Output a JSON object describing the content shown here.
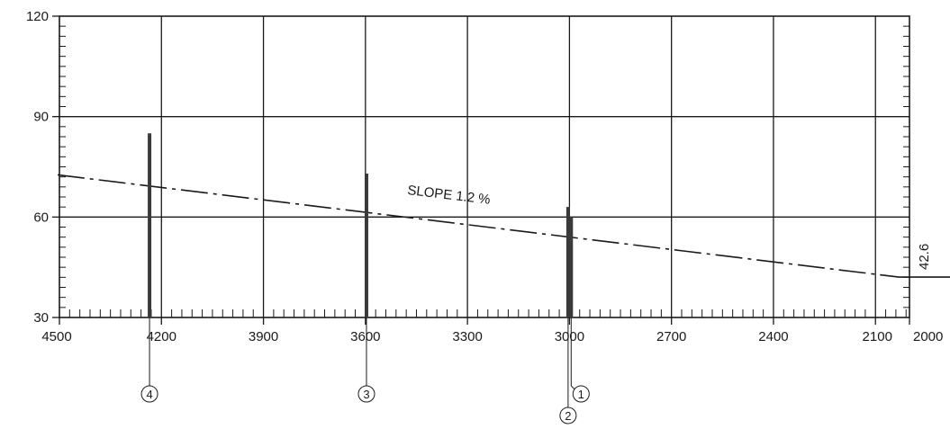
{
  "chart_data": {
    "type": "line",
    "title": "",
    "xlabel": "",
    "ylabel": "",
    "xlim": [
      4500,
      2000
    ],
    "ylim": [
      30,
      120
    ],
    "x_ticks_major": [
      4500,
      4200,
      3900,
      3600,
      3300,
      3000,
      2700,
      2400,
      2100,
      2000
    ],
    "x_tick_labels": [
      "4500",
      "4200",
      "3900",
      "3600",
      "3300",
      "3000",
      "2700",
      "2400",
      "2100",
      "2000"
    ],
    "y_ticks_major": [
      30,
      60,
      90,
      120
    ],
    "y_tick_labels": [
      "30",
      "60",
      "90",
      "120"
    ],
    "grid": true,
    "slope_line": {
      "label": "SLOPE 1.2 %",
      "points": [
        [
          4500,
          72.6
        ],
        [
          2000,
          42.6
        ]
      ]
    },
    "end_value_label": "42.6",
    "end_line": {
      "points": [
        [
          2000,
          42.6
        ],
        [
          1920,
          42.6
        ]
      ]
    },
    "bars": [
      {
        "id": "4",
        "x": 4235,
        "top": 85,
        "marker_label": "4"
      },
      {
        "id": "3",
        "x": 3597,
        "top": 73,
        "marker_label": "3"
      },
      {
        "id": "2",
        "x": 3004,
        "top": 63,
        "marker_label": "2"
      },
      {
        "id": "1",
        "x": 2995,
        "top": 60,
        "marker_label": "1"
      }
    ]
  }
}
